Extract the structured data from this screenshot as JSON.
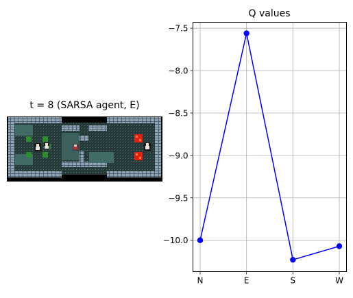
{
  "game": {
    "title": "t = 8 (SARSA agent, E)"
  },
  "chart_data": {
    "type": "line",
    "title": "Q values",
    "categories": [
      "N",
      "E",
      "S",
      "W"
    ],
    "series": [
      {
        "values": [
          -10.0,
          -7.56,
          -10.23,
          -10.07
        ],
        "color": "#0000ff"
      }
    ],
    "ylim": [
      -10.37,
      -7.43
    ],
    "yticks": [
      -10.0,
      -9.5,
      -9.0,
      -8.5,
      -8.0,
      -7.5
    ],
    "ytick_labels": [
      "−10.0",
      "−9.5",
      "−9.0",
      "−8.5",
      "−8.0",
      "−7.5"
    ],
    "grid": true
  }
}
